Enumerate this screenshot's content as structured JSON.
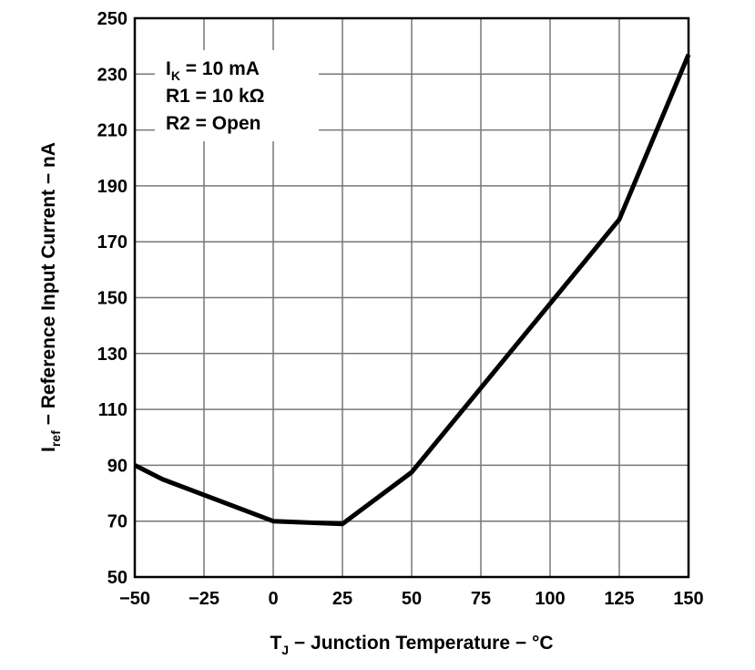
{
  "chart_data": {
    "type": "line",
    "xlabel": {
      "main": "T",
      "sub": "J",
      "rest": " − Junction Temperature − °C"
    },
    "ylabel": {
      "main": "I",
      "sub": "ref",
      "rest": " − Reference Input Current − nA"
    },
    "xlim": [
      -50,
      150
    ],
    "ylim": [
      50,
      250
    ],
    "xticks": [
      -50,
      -25,
      0,
      25,
      50,
      75,
      100,
      125,
      150
    ],
    "xtick_labels": [
      "−50",
      "−25",
      "0",
      "25",
      "50",
      "75",
      "100",
      "125",
      "150"
    ],
    "yticks": [
      50,
      70,
      90,
      110,
      130,
      150,
      170,
      190,
      210,
      230,
      250
    ],
    "grid": true,
    "annotations": [
      {
        "main": "I",
        "sub": "K",
        "rest": " = 10 mA"
      },
      {
        "main": "R1 = 10 kΩ",
        "sub": "",
        "rest": ""
      },
      {
        "main": "R2 = Open",
        "sub": "",
        "rest": ""
      }
    ],
    "series": [
      {
        "x": [
          -50,
          -40,
          0,
          25,
          50,
          125,
          150
        ],
        "y": [
          90,
          85,
          70,
          69,
          87.5,
          178,
          237
        ],
        "color": "#000000"
      }
    ]
  }
}
